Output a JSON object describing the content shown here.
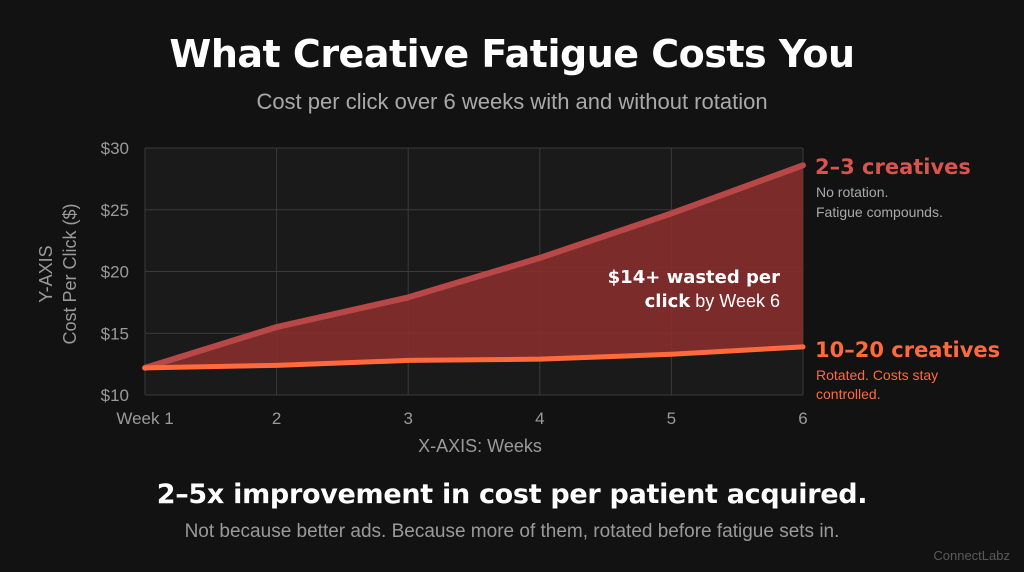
{
  "title": "What Creative Fatigue Costs You",
  "subtitle": "Cost per click over 6 weeks with and without rotation",
  "footer": {
    "headline": "2–5x improvement in cost per patient acquired.",
    "subtext": "Not because better ads. Because more of them, rotated before fatigue sets in."
  },
  "watermark": "ConnectLabz",
  "chart_data": {
    "type": "area",
    "categories": [
      "Week 1",
      "2",
      "3",
      "4",
      "5",
      "6"
    ],
    "xlabel": "X-AXIS: Weeks",
    "ylabel_line1": "Y-AXIS",
    "ylabel_line2": "Cost Per Click ($)",
    "ylim": [
      10,
      30
    ],
    "yticks": [
      10,
      15,
      20,
      25,
      30
    ],
    "ytick_labels": [
      "$10",
      "$15",
      "$20",
      "$25",
      "$30"
    ],
    "grid": true,
    "series": [
      {
        "name": "2–3 creatives",
        "note_line1": "No rotation.",
        "note_line2": "Fatigue compounds.",
        "values": [
          12.2,
          15.5,
          17.9,
          21.1,
          24.7,
          28.6
        ],
        "color": "#b84848"
      },
      {
        "name": "10–20 creatives",
        "note_line1": "Rotated. Costs stay",
        "note_line2": "controlled.",
        "values": [
          12.2,
          12.4,
          12.8,
          12.9,
          13.3,
          13.9
        ],
        "color": "#ff6a3d"
      }
    ],
    "annotation": {
      "line1": "$14+ wasted per",
      "line2_bold": "click",
      "line2_rest": " by Week 6"
    }
  },
  "colors": {
    "background": "#121212",
    "plot_background": "#1a1a1a",
    "grid": "#3a3a3a",
    "fill": "#8a2e2e",
    "high_series": "#b84848",
    "low_series": "#ff6a3d",
    "high_label": "#d9534f",
    "low_label": "#ff6a3d"
  }
}
